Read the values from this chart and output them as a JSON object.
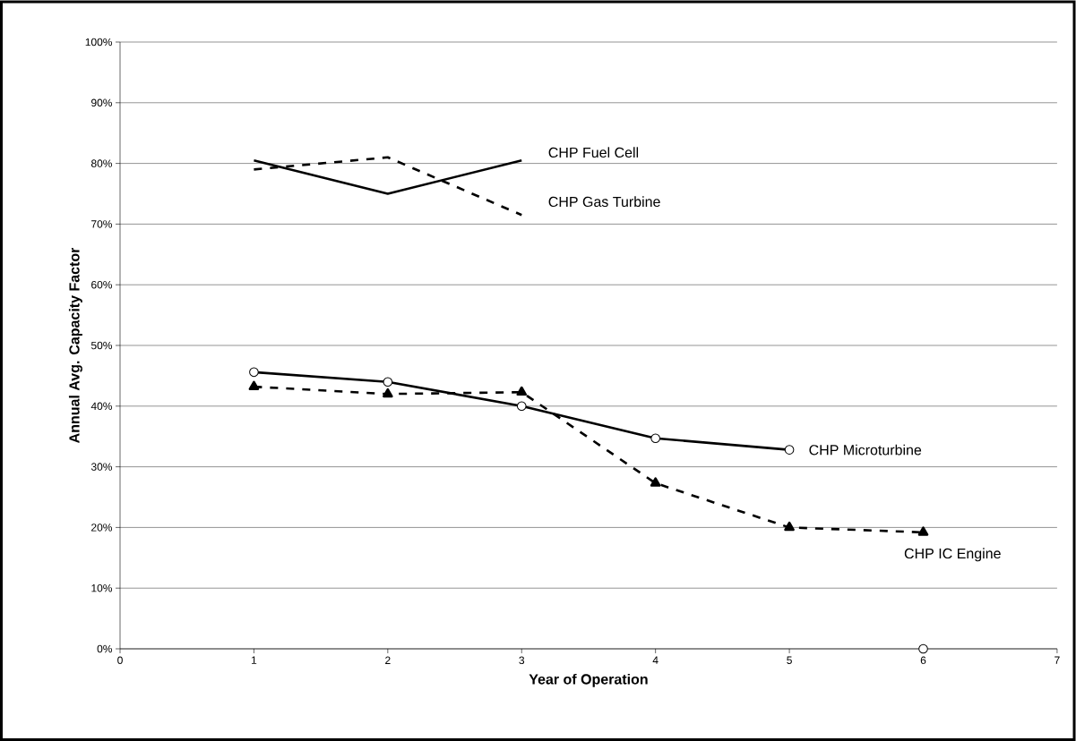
{
  "chart_data": {
    "type": "line",
    "xlabel": "Year of Operation",
    "ylabel": "Annual Avg. Capacity Factor",
    "x": [
      1,
      2,
      3,
      4,
      5,
      6
    ],
    "series": [
      {
        "name": "CHP Fuel Cell",
        "color": "#000000",
        "marker": "none",
        "line_style": "solid",
        "values": [
          80.5,
          75,
          80.5,
          null,
          null,
          null
        ]
      },
      {
        "name": "CHP Gas Turbine",
        "color": "#000000",
        "marker": "none",
        "line_style": "dashed",
        "values": [
          79,
          81,
          71.5,
          null,
          null,
          null
        ]
      },
      {
        "name": "CHP Microturbine",
        "color": "#000000",
        "marker": "circle",
        "line_style": "solid",
        "values": [
          45.6,
          44,
          40,
          34.7,
          32.8,
          null
        ]
      },
      {
        "name": "CHP IC Engine",
        "color": "#000000",
        "marker": "triangle",
        "line_style": "dashed",
        "values": [
          43.2,
          42,
          42.3,
          27.3,
          20,
          19.2
        ]
      },
      {
        "type": "scatter",
        "color": "#000000",
        "marker": "circle",
        "values": [
          null,
          null,
          null,
          null,
          null,
          0
        ]
      }
    ],
    "xlim": [
      0,
      7
    ],
    "xticks": [
      0,
      1,
      2,
      3,
      4,
      5,
      6,
      7
    ],
    "ylim": [
      0,
      100
    ],
    "yticks": [
      {
        "value": 0,
        "label": "0%"
      },
      {
        "value": 10,
        "label": "10%"
      },
      {
        "value": 20,
        "label": "20%"
      },
      {
        "value": 30,
        "label": "30%"
      },
      {
        "value": 40,
        "label": "40%"
      },
      {
        "value": 50,
        "label": "50%"
      },
      {
        "value": 60,
        "label": "60%"
      },
      {
        "value": 70,
        "label": "70%"
      },
      {
        "value": 80,
        "label": "80%"
      },
      {
        "value": 90,
        "label": "90%"
      },
      {
        "value": 100,
        "label": "100%"
      }
    ],
    "grid": "y",
    "legend": false
  }
}
